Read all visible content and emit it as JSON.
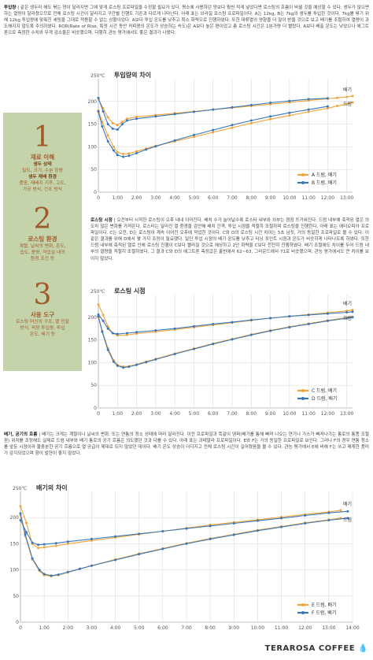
{
  "intro": {
    "label": "투입량",
    "text": "| 같은 생두라 해도 볶는 양이 달라지면 그에 맞게 로스팅 프로파일을 수정할 필요가 있다. 평소에 사용하던 양보다 훨씬 적게 넣었다면 로스팅의 흐름이 바뀔 것을 예상할 수 있다. 생두가 많으면 하는 열량이 달라졌으므로 전체 로스팅 시간이 달라지고 구간별 진행도 기존과 다르게 나타난다. 아래 표는 브라질 로스팅 프로파일이다. A는 12kg, B는 7kg의 생두를 투입한 것이다. 7kg를 볶기 위해 12kg 투입량에 맞춰진 세팅을 그대로 적용할 수 없는 상황이었다. A보다 투입 온도를 낮추고 최소 화력으로 진행하였다. 또한 대류열의 영향을 더 많이 받을 것으로 보고 배기를 조절하여 열량이 과도해지지 않도록 주의하였다. ROR(Rate of Rise, 특정 시간 동안 커피콩의 온도가 상승하는 속도)은 A보다 높은 편이었고 총 로스팅 시간은 1분가량 더 빨랐다. A보다 배출 온도는 낮았으나 에그트론으로 측정한 수치와 무게 감소율은 비슷했으며, 다행히 관능 평가에서도 좋은 결과가 나왔다."
  },
  "roast_time": {
    "label": "로스팅 시점",
    "text": "| 오전부터 시작한 로스팅이 오후 내내 이어진다. 배치 수가 늘어날수록 로스터 내부와 외부는 점점 뜨거워진다. 드럼 내부에 축적된 열은 의도치 않은 변화를 가져온다. 로스터는 달라진 열 환경을 감안해 배치 간격, 투입 시점을 적절히 조절하며 로스팅을 진행한다. 아래 표는 에티오피아 프로파일이다. C는 오전, D는 로스팅이 계속 이어진 오후에 작업한 것이다. C와 D의 로스팅 시간 차이는 5초 남짓, 거의 동일한 프로파일로 볼 수 있다. 이 같은 결과를 위해 D에서 몇 가지 조정이 필요했다. 일단 투입 시점의 배기 온도를 낮추고 터닝 포인트 시점과 온도가 비슷하게 나타나도록 하였다. 또한 드럼 내부에 축적된 열로 인해 로스팅 진행이 C보다 빨라질 것으로 예상하고 2단 화력을 C보다 천천히 진행하였다. 배기 조절에도 차이를 두어 드럼 내부의 열량을 적절히 조절하였다. 그 결과 C와 D의 에그트론 측정값은 홀빈에서 62~63, 그라운드에서 71로 비슷했으며, 관능 평가에서도 큰 차이를 보이지 않았다."
  },
  "exhaust": {
    "label": "배기, 공기의 흐름",
    "text": "| 배기는 크게는 계절이나 날씨의 변화, 또는 연통의 청소 상태에 따라 달라진다. 이전 프로파일과 똑같이 댐퍼(배기를 통해 빠져 나오는 연기나 가스가 빠져나가는 통로의 통풍 조절판) 위치를 조정해도 실제로 드럼 내부와 배기 통로의 공기 흐름은 의도했던 것과 다를 수 있다. 아래 표는 과테말라 프로파일이다. E와 F는 거의 동일한 프로파일로 보인다. 그러나 F의 경우 연통 청소를 앞둔 시점이라 불충분한 공기 흐름으로 열 공급이 제대로 되지 않았던 데이다. 배기 온도 상승이 더디지고 전체 로스팅 시간이 길어졌음을 볼 수 있다. 관능 평가에서 E에 비해 F는 쓰고 매캐한 풍미가 감지되었으며 향이 발현이 좋지 않았다."
  },
  "steps": [
    {
      "num": "1",
      "head": "재료 이해",
      "sub1": "생두 상태",
      "sub2": "밀도, 크기, 수분 함량",
      "sub3": "생두 재배 환경",
      "sub4": "품종, 재배지 기후, 고도,",
      "sub5": "가공 방식, 건조 방식"
    },
    {
      "num": "2",
      "head": "로스팅 환경",
      "sub1": "계절, 날씨의 변화, 온도,",
      "sub2": "습도, 용량, 작업실 내의",
      "sub3": "환경 조건 등"
    },
    {
      "num": "3",
      "head": "사용 도구",
      "sub1": "로스팅 머신의 구조, 열 전달",
      "sub2": "방식, 적정 투입량, 투입",
      "sub3": "온도, 배기 등"
    }
  ],
  "brand": "TERAROSA COFFEE",
  "colors": {
    "orange": "#f2a33a",
    "blue": "#3a77b8",
    "grid": "#d6d6d6"
  },
  "chart_data": [
    {
      "type": "line",
      "title": "투입량의 차이",
      "ylabel_unit": "250℃",
      "y_ticks": [
        "200",
        "150",
        "100",
        "50",
        "0"
      ],
      "ylim": [
        0,
        250
      ],
      "x_ticks": [
        "0",
        "1:00",
        "2:00",
        "3:00",
        "4:00",
        "5:00",
        "6:00",
        "7:00",
        "8:00",
        "9:00",
        "10:00",
        "11:00",
        "12:00",
        "13:00"
      ],
      "xlim": [
        0,
        13.3
      ],
      "curve_labels": {
        "exhaust": "배기",
        "drum": "드럼"
      },
      "legend": [
        "A 드럼, 배기",
        "B 드럼, 배기"
      ],
      "series": [
        {
          "name": "A 드럼, 배기",
          "kind": "배기",
          "color": "orange",
          "x": [
            0,
            0.25,
            0.5,
            0.75,
            1,
            1.25,
            1.5,
            2,
            3,
            4,
            5,
            6,
            7,
            8,
            9,
            10,
            11,
            12,
            12.5,
            13,
            13.3
          ],
          "y": [
            205,
            185,
            165,
            152,
            148,
            155,
            162,
            166,
            170,
            174,
            178,
            182,
            186,
            190,
            194,
            198,
            202,
            206,
            208,
            210,
            212
          ]
        },
        {
          "name": "B 드럼, 배기",
          "kind": "배기",
          "color": "blue",
          "x": [
            0,
            0.25,
            0.5,
            0.75,
            1,
            1.25,
            1.5,
            2,
            3,
            4,
            5,
            6,
            7,
            8,
            9,
            10,
            11,
            12
          ],
          "y": [
            208,
            178,
            150,
            140,
            138,
            150,
            158,
            162,
            167,
            172,
            177,
            182,
            187,
            192,
            197,
            201,
            205,
            207
          ]
        },
        {
          "name": "A 드럼, 배기",
          "kind": "드럼",
          "color": "orange",
          "x": [
            0,
            0.2,
            0.5,
            0.8,
            1,
            1.3,
            1.6,
            2,
            2.5,
            3,
            4,
            5,
            6,
            7,
            8,
            9,
            10,
            11,
            12,
            12.5,
            13,
            13.3
          ],
          "y": [
            180,
            155,
            125,
            100,
            88,
            84,
            85,
            90,
            96,
            102,
            112,
            122,
            132,
            142,
            152,
            161,
            169,
            177,
            185,
            190,
            194,
            198
          ]
        },
        {
          "name": "B 드럼, 배기",
          "kind": "드럼",
          "color": "blue",
          "x": [
            0,
            0.2,
            0.5,
            0.8,
            1,
            1.3,
            1.6,
            2,
            2.5,
            3,
            4,
            5,
            6,
            7,
            8,
            9,
            10,
            11,
            12
          ],
          "y": [
            178,
            145,
            112,
            92,
            82,
            78,
            80,
            86,
            94,
            101,
            114,
            126,
            137,
            148,
            158,
            167,
            175,
            182,
            189
          ]
        }
      ]
    },
    {
      "type": "line",
      "title": "로스팅 시점",
      "ylabel_unit": "250℃",
      "y_ticks": [
        "200",
        "150",
        "100",
        "50",
        "0"
      ],
      "ylim": [
        0,
        250
      ],
      "x_ticks": [
        "0",
        "1:00",
        "2:00",
        "3:00",
        "4:00",
        "5:00",
        "6:00",
        "7:00",
        "8:00",
        "9:00",
        "10:00",
        "11:00",
        "12:00",
        "13:00"
      ],
      "xlim": [
        0,
        13.3
      ],
      "curve_labels": {
        "exhaust": "배기",
        "drum": "드럼"
      },
      "legend": [
        "C 드럼, 배기",
        "D 드럼, 배기"
      ],
      "series": [
        {
          "name": "C 드럼, 배기",
          "kind": "배기",
          "color": "orange",
          "x": [
            0,
            0.25,
            0.5,
            0.75,
            1,
            1.5,
            2,
            3,
            4,
            5,
            6,
            7,
            8,
            9,
            10,
            11,
            12,
            13,
            13.3
          ],
          "y": [
            228,
            205,
            180,
            165,
            160,
            161,
            164,
            168,
            173,
            178,
            183,
            188,
            193,
            198,
            202,
            206,
            210,
            214,
            216
          ]
        },
        {
          "name": "D 드럼, 배기",
          "kind": "배기",
          "color": "blue",
          "x": [
            0,
            0.25,
            0.5,
            0.75,
            1,
            1.5,
            2,
            3,
            4,
            5,
            6,
            7,
            8,
            9,
            10,
            11,
            12,
            13,
            13.3
          ],
          "y": [
            206,
            192,
            175,
            165,
            163,
            165,
            167,
            171,
            175,
            180,
            185,
            189,
            194,
            198,
            202,
            205,
            208,
            211,
            212
          ]
        },
        {
          "name": "C 드럼, 배기",
          "kind": "드럼",
          "color": "orange",
          "x": [
            0,
            0.2,
            0.5,
            0.8,
            1,
            1.3,
            1.6,
            2,
            2.5,
            3,
            4,
            5,
            6,
            7,
            8,
            9,
            10,
            11,
            12,
            13,
            13.3
          ],
          "y": [
            200,
            170,
            132,
            105,
            95,
            91,
            92,
            96,
            102,
            108,
            120,
            131,
            142,
            152,
            162,
            171,
            179,
            186,
            193,
            199,
            201
          ]
        },
        {
          "name": "D 드럼, 배기",
          "kind": "드럼",
          "color": "blue",
          "x": [
            0,
            0.2,
            0.5,
            0.8,
            1,
            1.3,
            1.6,
            2,
            2.5,
            3,
            4,
            5,
            6,
            7,
            8,
            9,
            10,
            11,
            12,
            13,
            13.3
          ],
          "y": [
            202,
            168,
            128,
            102,
            93,
            89,
            91,
            95,
            101,
            107,
            119,
            130,
            141,
            151,
            161,
            170,
            178,
            185,
            192,
            198,
            200
          ]
        }
      ]
    },
    {
      "type": "line",
      "title": "배기의 차이",
      "ylabel_unit": "250℃",
      "y_ticks": [
        "200",
        "150",
        "100",
        "50",
        "0"
      ],
      "ylim": [
        0,
        250
      ],
      "x_ticks": [
        "0",
        "1:00",
        "2:00",
        "3:00",
        "4:00",
        "5:00",
        "6:00",
        "7:00",
        "8:00",
        "9:00",
        "10:00",
        "11:00",
        "12:00",
        "13:00",
        "14:00"
      ],
      "xlim": [
        0,
        14
      ],
      "curve_labels": {
        "exhaust": "배기",
        "drum": "드럼"
      },
      "legend": [
        "E 드럼, 배기",
        "F 드럼, 배기"
      ],
      "series": [
        {
          "name": "E 드럼, 배기",
          "kind": "배기",
          "color": "orange",
          "x": [
            0,
            0.25,
            0.5,
            0.75,
            1,
            1.5,
            2,
            3,
            4,
            5,
            6,
            7,
            8,
            9,
            10,
            11,
            12,
            13,
            13.5
          ],
          "y": [
            222,
            190,
            150,
            142,
            143,
            146,
            150,
            156,
            162,
            168,
            174,
            180,
            186,
            191,
            196,
            201,
            206,
            211,
            214
          ]
        },
        {
          "name": "F 드럼, 배기",
          "kind": "배기",
          "color": "blue",
          "x": [
            0,
            0.25,
            0.5,
            0.75,
            1,
            1.5,
            2,
            3,
            4,
            5,
            6,
            7,
            8,
            9,
            10,
            11,
            12,
            13,
            13.8
          ],
          "y": [
            195,
            172,
            152,
            148,
            149,
            151,
            154,
            159,
            164,
            169,
            174,
            179,
            184,
            189,
            194,
            199,
            204,
            209,
            212
          ]
        },
        {
          "name": "E 드럼, 배기",
          "kind": "드럼",
          "color": "orange",
          "x": [
            0,
            0.2,
            0.5,
            0.8,
            1,
            1.3,
            1.6,
            2,
            2.5,
            3,
            4,
            5,
            6,
            7,
            8,
            9,
            10,
            11,
            12,
            13,
            13.5
          ],
          "y": [
            205,
            165,
            120,
            98,
            90,
            88,
            90,
            95,
            102,
            108,
            120,
            131,
            141,
            151,
            160,
            168,
            176,
            183,
            190,
            196,
            199
          ]
        },
        {
          "name": "F 드럼, 배기",
          "kind": "드럼",
          "color": "blue",
          "x": [
            0,
            0.2,
            0.5,
            0.8,
            1,
            1.3,
            1.6,
            2,
            2.5,
            3,
            4,
            5,
            6,
            7,
            8,
            9,
            10,
            11,
            12,
            13,
            13.8
          ],
          "y": [
            208,
            168,
            122,
            100,
            92,
            89,
            91,
            96,
            102,
            108,
            119,
            130,
            140,
            150,
            159,
            167,
            175,
            182,
            189,
            195,
            199
          ]
        }
      ]
    }
  ]
}
